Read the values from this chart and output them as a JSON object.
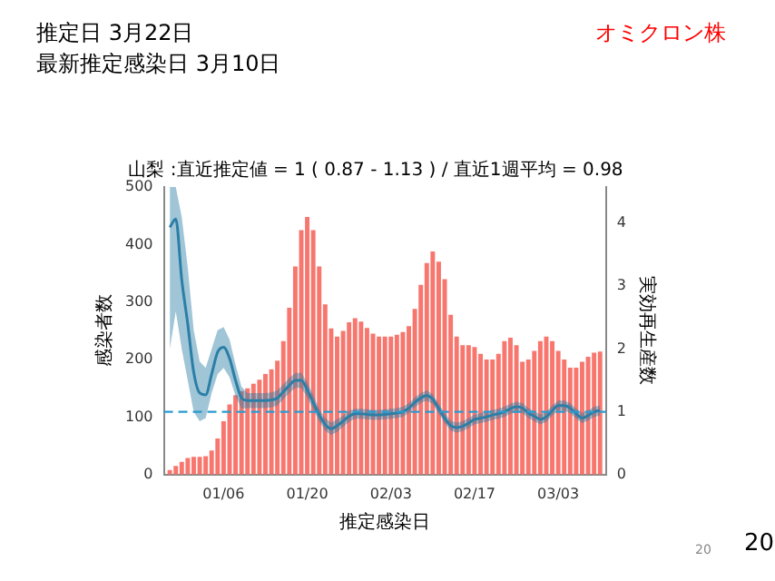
{
  "chart_data": {
    "type": "bar",
    "title": "山梨 :直近推定値 = 1 ( 0.87 - 1.13 ) / 直近1週平均 = 0.98",
    "xlabel": "推定感染日",
    "ylabel": "感染者数",
    "y2label": "実効再生産数",
    "annotations": [
      "推定日  3月22日",
      "最新推定感染日  3月10日",
      "オミクロン株",
      "20",
      "20"
    ],
    "categories": [
      null,
      null,
      null,
      null,
      null,
      null,
      null,
      null,
      null,
      "01/06",
      null,
      null,
      null,
      null,
      null,
      null,
      null,
      null,
      null,
      null,
      null,
      null,
      null,
      "01/20",
      null,
      null,
      null,
      null,
      null,
      null,
      null,
      null,
      null,
      null,
      null,
      null,
      null,
      "02/03",
      null,
      null,
      null,
      null,
      null,
      null,
      null,
      null,
      null,
      null,
      null,
      null,
      null,
      "02/17",
      null,
      null,
      null,
      null,
      null,
      null,
      null,
      null,
      null,
      null,
      null,
      null,
      null,
      "03/03",
      null,
      null,
      null,
      null,
      null,
      null,
      null
    ],
    "series": [
      {
        "color": "#f7766e",
        "values": [
          8,
          15,
          22,
          29,
          31,
          31,
          32,
          42,
          63,
          93,
          122,
          138,
          145,
          150,
          158,
          165,
          175,
          183,
          198,
          232,
          290,
          362,
          425,
          448,
          425,
          362,
          296,
          254,
          240,
          250,
          265,
          272,
          266,
          255,
          245,
          240,
          240,
          240,
          243,
          248,
          258,
          288,
          330,
          368,
          388,
          370,
          340,
          278,
          240,
          225,
          225,
          222,
          210,
          200,
          200,
          210,
          232,
          238,
          225,
          196,
          200,
          215,
          232,
          240,
          232,
          215,
          200,
          186,
          186,
          196,
          205,
          212,
          214
        ]
      },
      {
        "type": "line",
        "axis": "y2",
        "color": "#2b7ea6",
        "values": [
          3.94,
          4.07,
          3.1,
          2.4,
          1.63,
          1.3,
          1.27,
          1.6,
          1.95,
          2.03,
          1.85,
          1.5,
          1.22,
          1.18,
          1.18,
          1.18,
          1.18,
          1.19,
          1.22,
          1.32,
          1.42,
          1.5,
          1.5,
          1.35,
          1.15,
          0.95,
          0.8,
          0.73,
          0.78,
          0.85,
          0.93,
          0.97,
          0.97,
          0.96,
          0.95,
          0.95,
          0.96,
          0.97,
          0.98,
          1.0,
          1.06,
          1.15,
          1.22,
          1.26,
          1.2,
          1.05,
          0.9,
          0.78,
          0.75,
          0.77,
          0.82,
          0.88,
          0.9,
          0.92,
          0.95,
          0.97,
          1.0,
          1.05,
          1.08,
          1.06,
          0.98,
          0.93,
          0.88,
          0.92,
          1.02,
          1.1,
          1.1,
          1.06,
          0.97,
          0.9,
          0.94,
          1.0,
          1.02
        ],
        "lower": [
          2.0,
          2.6,
          2.0,
          1.5,
          1.0,
          0.85,
          0.9,
          1.3,
          1.6,
          1.7,
          1.55,
          1.25,
          1.05,
          1.06,
          1.06,
          1.06,
          1.06,
          1.07,
          1.1,
          1.2,
          1.3,
          1.38,
          1.38,
          1.23,
          1.03,
          0.85,
          0.7,
          0.63,
          0.68,
          0.76,
          0.84,
          0.89,
          0.89,
          0.88,
          0.87,
          0.87,
          0.88,
          0.89,
          0.9,
          0.92,
          0.98,
          1.07,
          1.14,
          1.18,
          1.12,
          0.97,
          0.82,
          0.7,
          0.67,
          0.69,
          0.74,
          0.8,
          0.82,
          0.84,
          0.87,
          0.89,
          0.92,
          0.97,
          1.0,
          0.98,
          0.9,
          0.85,
          0.8,
          0.84,
          0.94,
          1.02,
          1.02,
          0.98,
          0.89,
          0.82,
          0.86,
          0.92,
          0.94
        ],
        "upper": [
          4.58,
          4.58,
          4.1,
          3.3,
          2.3,
          1.8,
          1.7,
          2.0,
          2.3,
          2.35,
          2.15,
          1.75,
          1.4,
          1.3,
          1.3,
          1.3,
          1.3,
          1.31,
          1.34,
          1.44,
          1.54,
          1.62,
          1.62,
          1.47,
          1.27,
          1.05,
          0.9,
          0.83,
          0.88,
          0.94,
          1.02,
          1.05,
          1.05,
          1.04,
          1.03,
          1.03,
          1.04,
          1.05,
          1.06,
          1.08,
          1.14,
          1.23,
          1.3,
          1.34,
          1.28,
          1.13,
          0.98,
          0.86,
          0.83,
          0.85,
          0.9,
          0.96,
          0.98,
          1.0,
          1.03,
          1.05,
          1.08,
          1.13,
          1.16,
          1.14,
          1.06,
          1.01,
          0.96,
          1.0,
          1.1,
          1.18,
          1.18,
          1.14,
          1.05,
          0.98,
          1.02,
          1.08,
          1.1
        ]
      }
    ],
    "ylim": [
      0,
      500
    ],
    "yticks": [
      0,
      100,
      200,
      300,
      400,
      500
    ],
    "y2lim": [
      0,
      4.58
    ],
    "y2ticks": [
      0,
      1,
      2,
      3,
      4
    ],
    "ref_lines": [
      {
        "axis": "y2",
        "value": 1,
        "color": "#2b9bd0",
        "line_style": "dashed"
      }
    ],
    "marker": "none",
    "line_style": "solid",
    "grid": false,
    "legend": false
  }
}
